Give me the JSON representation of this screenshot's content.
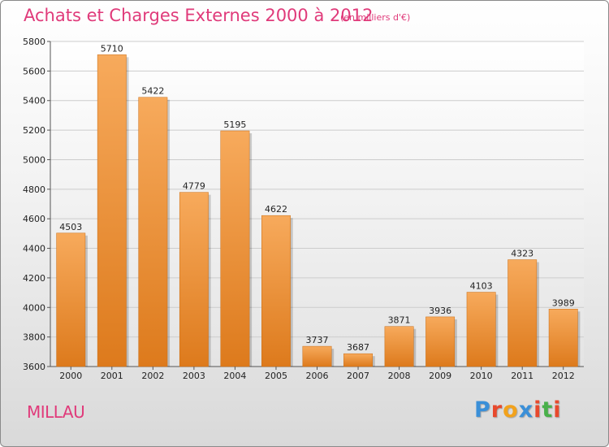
{
  "title": "Achats et Charges Externes 2000 à 2012",
  "subtitle": "(en milliers d'€)",
  "city": "MILLAU",
  "logo": {
    "letters": [
      "P",
      "r",
      "o",
      "x",
      "i",
      "t",
      "i"
    ],
    "colors": [
      "#3a8fd8",
      "#e8492d",
      "#f2a21c",
      "#3a8fd8",
      "#e8492d",
      "#49b04a",
      "#e8492d"
    ]
  },
  "colors": {
    "accent": "#e03a7a",
    "bar_top": "#f7aa5c",
    "bar_bottom": "#dd7a1c",
    "grid": "#cccccc"
  },
  "chart_data": {
    "type": "bar",
    "categories": [
      "2000",
      "2001",
      "2002",
      "2003",
      "2004",
      "2005",
      "2006",
      "2007",
      "2008",
      "2009",
      "2010",
      "2011",
      "2012"
    ],
    "values": [
      4503,
      5710,
      5422,
      4779,
      5195,
      4622,
      3737,
      3687,
      3871,
      3936,
      4103,
      4323,
      3989
    ],
    "ylim": [
      3600,
      5800
    ],
    "yticks": [
      3600,
      3800,
      4000,
      4200,
      4400,
      4600,
      4800,
      5000,
      5200,
      5400,
      5600,
      5800
    ],
    "grid": true,
    "data_labels": true
  }
}
